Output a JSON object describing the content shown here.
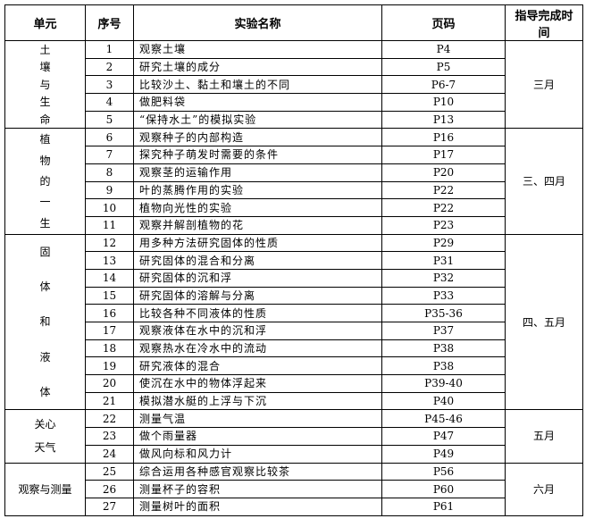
{
  "headers": {
    "unit": "单元",
    "no": "序号",
    "name": "实验名称",
    "page": "页码",
    "time": "指导完成时间"
  },
  "units": [
    {
      "lines": [
        "土",
        "壤",
        "与",
        "生",
        "命"
      ],
      "month": "三月",
      "rows": [
        {
          "no": "1",
          "name": "观察土壤",
          "page": "P4"
        },
        {
          "no": "2",
          "name": "研究土壤的成分",
          "page": "P5"
        },
        {
          "no": "3",
          "name": "比较沙土、黏土和壤土的不同",
          "page": "P6-7"
        },
        {
          "no": "4",
          "name": "做肥料袋",
          "page": "P10"
        },
        {
          "no": "5",
          "name": "“保持水土”的模拟实验",
          "page": "P13"
        }
      ]
    },
    {
      "lines": [
        "植",
        "物",
        "的",
        "一",
        "生"
      ],
      "month": "三、四月",
      "rows": [
        {
          "no": "6",
          "name": "观察种子的内部构造",
          "page": "P16"
        },
        {
          "no": "7",
          "name": "探究种子萌发时需要的条件",
          "page": "P17"
        },
        {
          "no": "8",
          "name": "观察茎的运输作用",
          "page": "P20"
        },
        {
          "no": "9",
          "name": "叶的蒸腾作用的实验",
          "page": "P22"
        },
        {
          "no": "10",
          "name": "植物向光性的实验",
          "page": "P22"
        },
        {
          "no": "11",
          "name": "观察并解剖植物的花",
          "page": "P23"
        }
      ]
    },
    {
      "lines": [
        "固",
        "体",
        "和",
        "液",
        "体"
      ],
      "month": "四、五月",
      "rows": [
        {
          "no": "12",
          "name": "用多种方法研究固体的性质",
          "page": "P29"
        },
        {
          "no": "13",
          "name": "研究固体的混合和分离",
          "page": "P31"
        },
        {
          "no": "14",
          "name": "研究固体的沉和浮",
          "page": "P32"
        },
        {
          "no": "15",
          "name": "研究固体的溶解与分离",
          "page": "P33"
        },
        {
          "no": "16",
          "name": "比较各种不同液体的性质",
          "page": "P35-36"
        },
        {
          "no": "17",
          "name": "观察液体在水中的沉和浮",
          "page": "P37"
        },
        {
          "no": "18",
          "name": "观察热水在冷水中的流动",
          "page": "P38"
        },
        {
          "no": "19",
          "name": "研究液体的混合",
          "page": "P38"
        },
        {
          "no": "20",
          "name": "使沉在水中的物体浮起来",
          "page": "P39-40"
        },
        {
          "no": "21",
          "name": "模拟潜水艇的上浮与下沉",
          "page": "P40"
        }
      ]
    },
    {
      "lines": [
        "关心",
        "天气"
      ],
      "month": "五月",
      "rows": [
        {
          "no": "22",
          "name": "测量气温",
          "page": "P45-46"
        },
        {
          "no": "23",
          "name": "做个雨量器",
          "page": "P47"
        },
        {
          "no": "24",
          "name": "做风向标和风力计",
          "page": "P49"
        }
      ]
    },
    {
      "lines": [
        "观察与测量"
      ],
      "month": "六月",
      "rows": [
        {
          "no": "25",
          "name": "综合运用各种感官观察比较茶",
          "page": "P56"
        },
        {
          "no": "26",
          "name": "测量杯子的容积",
          "page": "P60"
        },
        {
          "no": "27",
          "name": "测量树叶的面积",
          "page": "P61"
        }
      ]
    }
  ]
}
